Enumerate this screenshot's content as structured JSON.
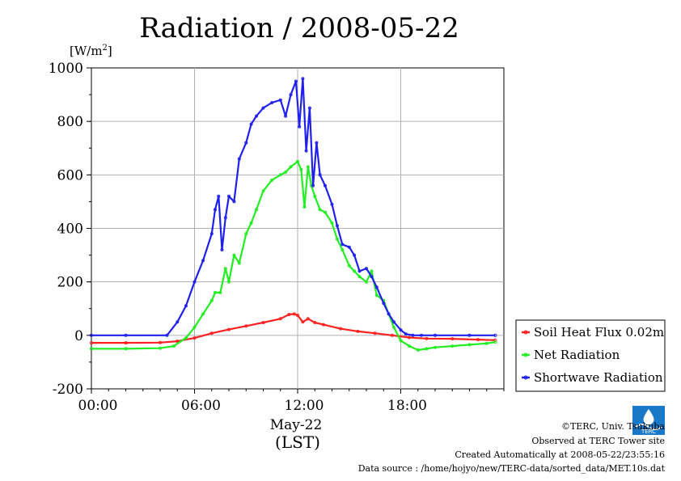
{
  "chart_data": {
    "type": "line",
    "title": "Radiation / 2008-05-22",
    "ylabel": "[W/m2]",
    "ylabel_base": "[W/m",
    "ylabel_sup": "2",
    "ylabel_end": "]",
    "ylim": [
      -200,
      1000
    ],
    "xlim": [
      0,
      24
    ],
    "grid": true,
    "legend_position": "right",
    "x_ticks": [
      0,
      6,
      12,
      18
    ],
    "x_tick_labels": [
      "00:00",
      "06:00",
      "12:00",
      "18:00"
    ],
    "y_ticks": [
      -200,
      0,
      200,
      400,
      600,
      800,
      1000
    ],
    "y_tick_labels": [
      "-200",
      "0",
      "200",
      "400",
      "600",
      "800",
      "1000"
    ],
    "date_label": "May-22",
    "xlabel": "(LST)",
    "series": [
      {
        "name": "Soil Heat Flux 0.02m",
        "color": "#ff2020",
        "x": [
          0,
          2,
          4,
          5,
          6,
          7,
          8,
          9,
          10,
          11,
          11.5,
          11.8,
          12.0,
          12.3,
          12.6,
          13.0,
          13.5,
          14.5,
          15.5,
          16.5,
          17.5,
          18.5,
          19.5,
          21,
          22.5,
          23.5
        ],
        "y": [
          -28,
          -28,
          -27,
          -22,
          -10,
          8,
          22,
          35,
          48,
          62,
          78,
          80,
          75,
          50,
          62,
          48,
          40,
          25,
          15,
          8,
          0,
          -8,
          -12,
          -13,
          -16,
          -18
        ]
      },
      {
        "name": "Net Radiation",
        "color": "#22ee22",
        "x": [
          0,
          2,
          4,
          4.8,
          5.5,
          6.0,
          6.5,
          7.0,
          7.2,
          7.5,
          7.8,
          8.0,
          8.3,
          8.6,
          9.0,
          9.3,
          9.6,
          10.0,
          10.5,
          11.0,
          11.3,
          11.6,
          12.0,
          12.2,
          12.4,
          12.6,
          12.8,
          13.0,
          13.3,
          13.6,
          14.0,
          14.3,
          14.6,
          15.0,
          15.3,
          15.6,
          16.0,
          16.3,
          16.6,
          17.0,
          17.3,
          17.6,
          18.0,
          18.5,
          19.0,
          19.5,
          20,
          21,
          22,
          23,
          23.5
        ],
        "y": [
          -50,
          -50,
          -48,
          -40,
          -10,
          30,
          80,
          130,
          160,
          160,
          250,
          200,
          300,
          270,
          380,
          420,
          470,
          540,
          580,
          600,
          610,
          630,
          650,
          620,
          480,
          630,
          560,
          520,
          470,
          460,
          420,
          360,
          320,
          260,
          240,
          220,
          200,
          240,
          150,
          130,
          80,
          30,
          -20,
          -40,
          -55,
          -50,
          -45,
          -40,
          -35,
          -30,
          -25
        ]
      },
      {
        "name": "Shortwave Radiation",
        "color": "#2020ee",
        "x": [
          0,
          2,
          4.4,
          5.0,
          5.5,
          6.0,
          6.5,
          7.0,
          7.2,
          7.4,
          7.6,
          7.8,
          8.0,
          8.3,
          8.6,
          9.0,
          9.3,
          9.6,
          10.0,
          10.5,
          11.0,
          11.3,
          11.6,
          11.9,
          12.1,
          12.3,
          12.5,
          12.7,
          12.9,
          13.1,
          13.3,
          13.6,
          14.0,
          14.3,
          14.6,
          15.0,
          15.3,
          15.6,
          16.0,
          16.3,
          16.6,
          17.0,
          17.3,
          17.6,
          18.0,
          18.3,
          18.7,
          19.2,
          20,
          22,
          23.5
        ],
        "y": [
          0,
          0,
          0,
          50,
          110,
          200,
          280,
          380,
          470,
          520,
          320,
          440,
          520,
          500,
          660,
          720,
          790,
          820,
          850,
          870,
          880,
          820,
          900,
          950,
          780,
          960,
          690,
          850,
          560,
          720,
          600,
          560,
          490,
          410,
          340,
          330,
          300,
          240,
          250,
          220,
          180,
          120,
          80,
          50,
          20,
          5,
          0,
          0,
          0,
          0,
          0
        ]
      }
    ]
  },
  "footer": {
    "copyright": "©TERC, Univ. Tsukuba",
    "observed": "Observed at TERC Tower site",
    "created": "Created Automatically at 2008-05-22/23:55:16",
    "source": "Data source : /home/hojyo/new/TERC-data/sorted_data/MET.10s.dat",
    "logo_text": "TERC"
  }
}
